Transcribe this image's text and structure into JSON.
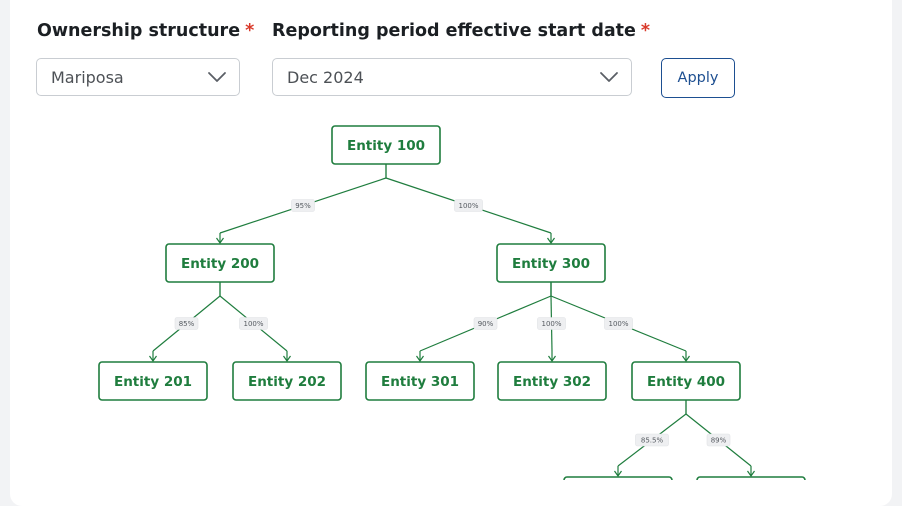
{
  "filters": {
    "ownership": {
      "label": "Ownership structure",
      "required": "*",
      "value": "Mariposa"
    },
    "period": {
      "label": "Reporting period effective start date",
      "required": "*",
      "value": "Dec 2024"
    },
    "apply_label": "Apply"
  },
  "colors": {
    "node": "#1f7d3e",
    "accent": "#1d4f91",
    "required": "#d93a2b"
  },
  "tree": {
    "nodes": [
      {
        "id": "n100",
        "label": "Entity 100"
      },
      {
        "id": "n200",
        "label": "Entity 200"
      },
      {
        "id": "n300",
        "label": "Entity 300"
      },
      {
        "id": "n201",
        "label": "Entity 201"
      },
      {
        "id": "n202",
        "label": "Entity 202"
      },
      {
        "id": "n301",
        "label": "Entity 301"
      },
      {
        "id": "n302",
        "label": "Entity 302"
      },
      {
        "id": "n400",
        "label": "Entity 400"
      },
      {
        "id": "n401",
        "label": ""
      },
      {
        "id": "n402",
        "label": ""
      }
    ],
    "edges": [
      {
        "from": "n100",
        "to": "n200",
        "pct": "95%"
      },
      {
        "from": "n100",
        "to": "n300",
        "pct": "100%"
      },
      {
        "from": "n200",
        "to": "n201",
        "pct": "85%"
      },
      {
        "from": "n200",
        "to": "n202",
        "pct": "100%"
      },
      {
        "from": "n300",
        "to": "n301",
        "pct": "90%"
      },
      {
        "from": "n300",
        "to": "n302",
        "pct": "100%"
      },
      {
        "from": "n300",
        "to": "n400",
        "pct": "100%"
      },
      {
        "from": "n400",
        "to": "n401",
        "pct": "85.5%"
      },
      {
        "from": "n400",
        "to": "n402",
        "pct": "89%"
      }
    ]
  }
}
